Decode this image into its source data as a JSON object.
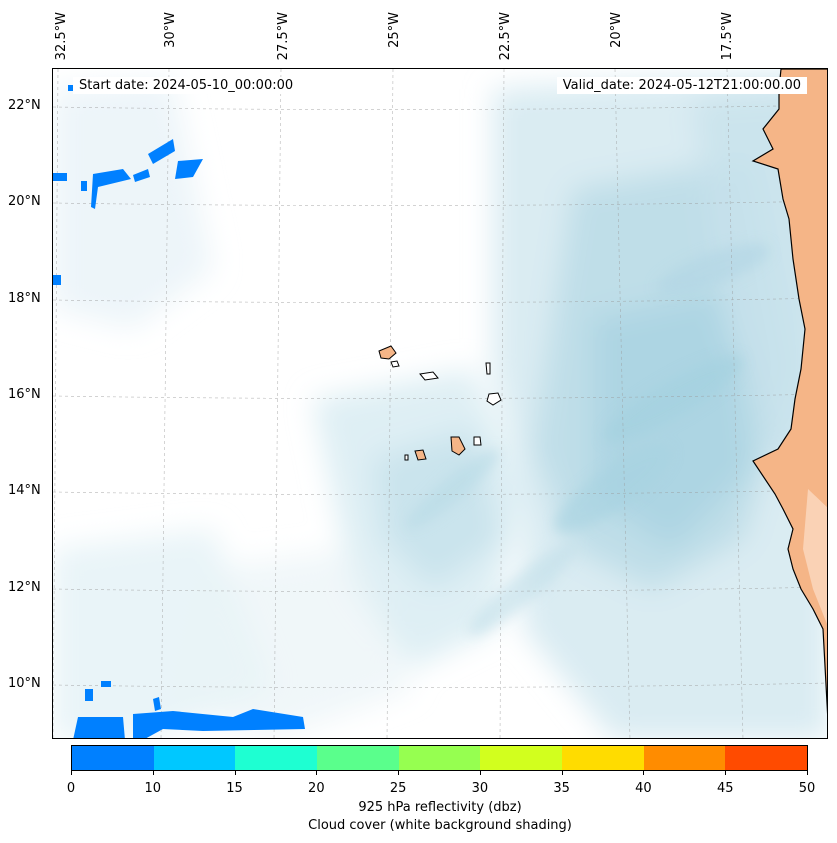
{
  "map": {
    "start_date": "Start date: 2024-05-10_00:00:00",
    "valid_date": "Valid_date: 2024-05-12T21:00:00.00",
    "lon_labels": [
      "32.5°W",
      "30°W",
      "27.5°W",
      "25°W",
      "22.5°W",
      "20°W",
      "17.5°W"
    ],
    "lat_labels": [
      "22°N",
      "20°N",
      "18°N",
      "16°N",
      "14°N",
      "12°N",
      "10°N"
    ],
    "colors": {
      "land": "#f5b587",
      "cloud": "#cfe6ee",
      "reflectivity_low": "#0080ff"
    }
  },
  "colorbar": {
    "ticks": [
      "0",
      "10",
      "15",
      "20",
      "25",
      "30",
      "35",
      "40",
      "45",
      "50"
    ],
    "colors": [
      "#0080ff",
      "#00c8ff",
      "#1effd2",
      "#5aff8c",
      "#96ff50",
      "#d2ff1e",
      "#ffdc00",
      "#ff8c00",
      "#ff4b00"
    ],
    "label": "925 hPa reflectivity (dbz)",
    "sublabel": "Cloud cover (white background shading)"
  }
}
